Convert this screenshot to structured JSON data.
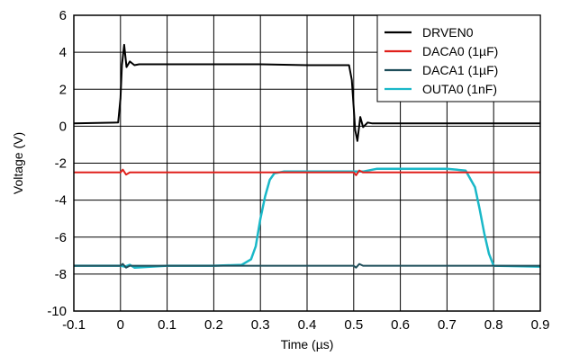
{
  "chart_data": {
    "type": "line",
    "title": "",
    "xlabel": "Time (µs)",
    "ylabel": "Voltage (V)",
    "xlim": [
      -0.1,
      0.9
    ],
    "ylim": [
      -10,
      6
    ],
    "x_ticks": [
      -0.1,
      0,
      0.1,
      0.2,
      0.3,
      0.4,
      0.5,
      0.6,
      0.7,
      0.8,
      0.9
    ],
    "x_tick_labels": [
      "-0.1",
      "0",
      "0.1",
      "0.2",
      "0.3",
      "0.4",
      "0.5",
      "0.6",
      "0.7",
      "0.8",
      "0.9"
    ],
    "y_ticks": [
      -10,
      -8,
      -6,
      -4,
      -2,
      0,
      2,
      4,
      6
    ],
    "y_tick_labels": [
      "-10",
      "-8",
      "-6",
      "-4",
      "-2",
      "0",
      "2",
      "4",
      "6"
    ],
    "grid": true,
    "legend_position": "top-right",
    "series": [
      {
        "name": "DRVEN0",
        "color": "#000000",
        "x": [
          -0.1,
          -0.005,
          0.0,
          0.003,
          0.008,
          0.013,
          0.02,
          0.03,
          0.04,
          0.1,
          0.2,
          0.3,
          0.4,
          0.49,
          0.496,
          0.5,
          0.503,
          0.508,
          0.514,
          0.52,
          0.53,
          0.54,
          0.6,
          0.7,
          0.8,
          0.9
        ],
        "y": [
          0.15,
          0.2,
          1.5,
          3.3,
          4.4,
          3.2,
          3.5,
          3.3,
          3.35,
          3.35,
          3.35,
          3.35,
          3.3,
          3.3,
          2.5,
          1.0,
          -0.2,
          -0.8,
          0.5,
          -0.05,
          0.2,
          0.15,
          0.15,
          0.15,
          0.15,
          0.15
        ]
      },
      {
        "name": "DACA0 (1µF)",
        "color": "#e0201b",
        "x": [
          -0.1,
          0.0,
          0.005,
          0.012,
          0.02,
          0.1,
          0.2,
          0.3,
          0.4,
          0.5,
          0.505,
          0.512,
          0.52,
          0.6,
          0.7,
          0.8,
          0.9
        ],
        "y": [
          -2.5,
          -2.5,
          -2.35,
          -2.62,
          -2.5,
          -2.5,
          -2.5,
          -2.5,
          -2.5,
          -2.5,
          -2.65,
          -2.4,
          -2.5,
          -2.5,
          -2.5,
          -2.5,
          -2.5
        ]
      },
      {
        "name": "DACA1 (1µF)",
        "color": "#1f4e5a",
        "x": [
          -0.1,
          0.0,
          0.005,
          0.012,
          0.02,
          0.1,
          0.2,
          0.3,
          0.4,
          0.5,
          0.505,
          0.512,
          0.52,
          0.6,
          0.7,
          0.8,
          0.9
        ],
        "y": [
          -7.55,
          -7.55,
          -7.45,
          -7.65,
          -7.55,
          -7.55,
          -7.55,
          -7.55,
          -7.55,
          -7.55,
          -7.65,
          -7.45,
          -7.55,
          -7.55,
          -7.55,
          -7.55,
          -7.55
        ]
      },
      {
        "name": "OUTA0 (1nF)",
        "color": "#1ab8c8",
        "x": [
          -0.1,
          0.0,
          0.01,
          0.02,
          0.03,
          0.1,
          0.2,
          0.26,
          0.28,
          0.29,
          0.3,
          0.31,
          0.32,
          0.33,
          0.35,
          0.4,
          0.5,
          0.52,
          0.55,
          0.6,
          0.7,
          0.74,
          0.76,
          0.77,
          0.78,
          0.79,
          0.8,
          0.9
        ],
        "y": [
          -7.55,
          -7.55,
          -7.6,
          -7.5,
          -7.65,
          -7.55,
          -7.55,
          -7.5,
          -7.2,
          -6.5,
          -5.0,
          -3.8,
          -2.9,
          -2.55,
          -2.45,
          -2.45,
          -2.45,
          -2.45,
          -2.3,
          -2.3,
          -2.3,
          -2.4,
          -3.3,
          -4.5,
          -5.8,
          -6.9,
          -7.55,
          -7.6
        ]
      }
    ]
  }
}
